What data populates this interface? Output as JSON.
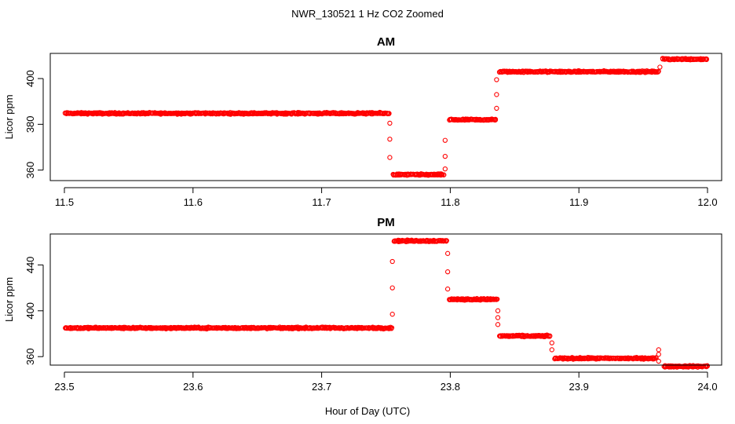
{
  "figure": {
    "title": "NWR_130521  1 Hz CO2 Zoomed",
    "xlabel": "Hour of Day (UTC)"
  },
  "colors": {
    "points": "#ff0000",
    "axis": "#000000"
  },
  "chart_data": [
    {
      "type": "scatter",
      "title": "AM",
      "xlabel": "Hour of Day (UTC)",
      "ylabel": "Licor ppm",
      "xlim": [
        11.5,
        12.0
      ],
      "ylim": [
        355.4,
        411.0
      ],
      "xticks": [
        11.5,
        11.6,
        11.7,
        11.8,
        11.9,
        12.0
      ],
      "xtick_labels": [
        "11.5",
        "11.6",
        "11.7",
        "11.8",
        "11.9",
        "12.0"
      ],
      "yticks": [
        360,
        380,
        400
      ],
      "ytick_labels": [
        "360",
        "380",
        "400"
      ],
      "grid": false,
      "series": [
        {
          "marker": "open-circle",
          "segments": [
            {
              "x_start": 11.5,
              "x_end": 11.752,
              "y": 384.8
            },
            {
              "x_start": 11.755,
              "x_end": 11.795,
              "y": 358.0
            },
            {
              "x_start": 11.799,
              "x_end": 11.835,
              "y": 382.0
            },
            {
              "x_start": 11.838,
              "x_end": 11.962,
              "y": 403.0
            },
            {
              "x_start": 11.965,
              "x_end": 12.0,
              "y": 408.5
            }
          ],
          "transitions": [
            {
              "x": 11.753,
              "y": [
                380.5,
                373.5,
                365.5
              ]
            },
            {
              "x": 11.796,
              "y": [
                360.5,
                366.0,
                373.0
              ]
            },
            {
              "x": 11.836,
              "y": [
                387.0,
                393.0,
                399.5
              ]
            },
            {
              "x": 11.963,
              "y": [
                405.0
              ]
            }
          ]
        }
      ]
    },
    {
      "type": "scatter",
      "title": "PM",
      "xlabel": "Hour of Day (UTC)",
      "ylabel": "Licor ppm",
      "xlim": [
        23.5,
        24.0
      ],
      "ylim": [
        352.6,
        467.0
      ],
      "xticks": [
        23.5,
        23.6,
        23.7,
        23.8,
        23.9,
        24.0
      ],
      "xtick_labels": [
        "23.5",
        "23.6",
        "23.7",
        "23.8",
        "23.9",
        "24.0"
      ],
      "yticks": [
        360,
        400,
        440
      ],
      "ytick_labels": [
        "360",
        "400",
        "440"
      ],
      "grid": false,
      "series": [
        {
          "marker": "open-circle",
          "segments": [
            {
              "x_start": 23.5,
              "x_end": 23.754,
              "y": 385.0
            },
            {
              "x_start": 23.756,
              "x_end": 23.797,
              "y": 461.0
            },
            {
              "x_start": 23.799,
              "x_end": 23.836,
              "y": 410.0
            },
            {
              "x_start": 23.838,
              "x_end": 23.877,
              "y": 378.0
            },
            {
              "x_start": 23.881,
              "x_end": 23.96,
              "y": 358.5
            },
            {
              "x_start": 23.966,
              "x_end": 24.0,
              "y": 351.5
            }
          ],
          "transitions": [
            {
              "x": 23.755,
              "y": [
                397.0,
                420.0,
                443.0
              ]
            },
            {
              "x": 23.798,
              "y": [
                450.0,
                434.0,
                419.0
              ]
            },
            {
              "x": 23.837,
              "y": [
                400.0,
                394.0,
                388.0
              ]
            },
            {
              "x": 23.879,
              "y": [
                372.0,
                366.0
              ]
            },
            {
              "x": 23.962,
              "y": [
                366.0,
                362.0,
                356.0
              ]
            }
          ]
        }
      ]
    }
  ]
}
